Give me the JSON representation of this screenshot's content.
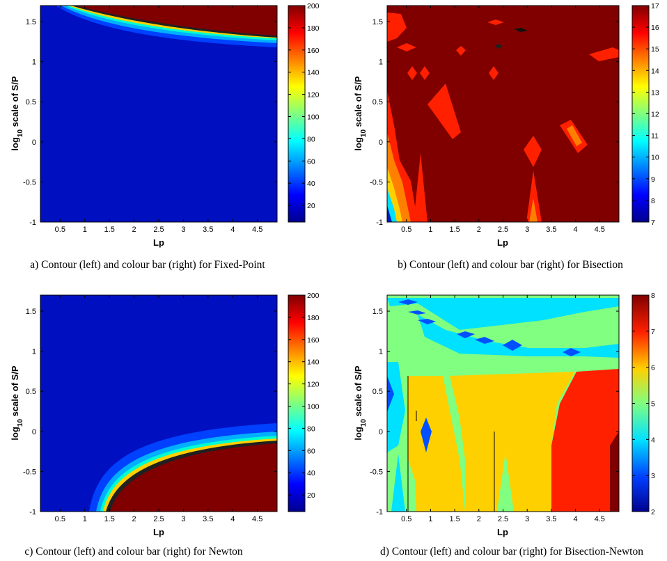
{
  "chart_data": [
    {
      "id": "a",
      "type": "heatmap",
      "caption": "a) Contour (left) and colour bar (right) for Fixed-Point",
      "xlabel": "Lp",
      "ylabel_prefix": "log",
      "ylabel_sub": "10",
      "ylabel_suffix": " scale of S/P",
      "xlim": [
        0.1,
        4.9
      ],
      "ylim": [
        -1,
        1.7
      ],
      "xticks": [
        "0.5",
        "1",
        "1.5",
        "2",
        "2.5",
        "3",
        "3.5",
        "4",
        "4.5"
      ],
      "yticks": [
        "-1",
        "-0.5",
        "0",
        "0.5",
        "1",
        "1.5"
      ],
      "colorbar": {
        "min": 5,
        "max": 200,
        "ticks": [
          "20",
          "40",
          "60",
          "80",
          "100",
          "120",
          "140",
          "160",
          "180",
          "200"
        ]
      }
    },
    {
      "id": "b",
      "type": "heatmap",
      "caption": "b) Contour (left) and colour bar (right) for Bisection",
      "xlabel": "Lp",
      "ylabel_prefix": "log",
      "ylabel_sub": "10",
      "ylabel_suffix": " scale of S/P",
      "xlim": [
        0.1,
        4.9
      ],
      "ylim": [
        -1,
        1.7
      ],
      "xticks": [
        "0.5",
        "1",
        "1.5",
        "2",
        "2.5",
        "3",
        "3.5",
        "4",
        "4.5"
      ],
      "yticks": [
        "-1",
        "-0.5",
        "0",
        "0.5",
        "1",
        "1.5"
      ],
      "colorbar": {
        "min": 7,
        "max": 17,
        "ticks": [
          "7",
          "8",
          "9",
          "10",
          "11",
          "12",
          "13",
          "14",
          "15",
          "16",
          "17"
        ]
      }
    },
    {
      "id": "c",
      "type": "heatmap",
      "caption": "c) Contour (left) and colour bar (right) for Newton",
      "xlabel": "Lp",
      "ylabel_prefix": "log",
      "ylabel_sub": "10",
      "ylabel_suffix": " scale of S/P",
      "xlim": [
        0.1,
        4.9
      ],
      "ylim": [
        -1,
        1.7
      ],
      "xticks": [
        "0.5",
        "1",
        "1.5",
        "2",
        "2.5",
        "3",
        "3.5",
        "4",
        "4.5"
      ],
      "yticks": [
        "-1",
        "-0.5",
        "0",
        "0.5",
        "1",
        "1.5"
      ],
      "colorbar": {
        "min": 5,
        "max": 200,
        "ticks": [
          "20",
          "40",
          "60",
          "80",
          "100",
          "120",
          "140",
          "160",
          "180",
          "200"
        ]
      }
    },
    {
      "id": "d",
      "type": "heatmap",
      "caption": "d) Contour (left) and colour bar (right) for Bisection-Newton",
      "xlabel": "Lp",
      "ylabel_prefix": "log",
      "ylabel_sub": "10",
      "ylabel_suffix": " scale of S/P",
      "xlim": [
        0.1,
        4.9
      ],
      "ylim": [
        -1,
        1.7
      ],
      "xticks": [
        "0.5",
        "1",
        "1.5",
        "2",
        "2.5",
        "3",
        "3.5",
        "4",
        "4.5"
      ],
      "yticks": [
        "-1",
        "-0.5",
        "0",
        "0.5",
        "1",
        "1.5"
      ],
      "colorbar": {
        "min": 2,
        "max": 8,
        "ticks": [
          "2",
          "3",
          "4",
          "5",
          "6",
          "7",
          "8"
        ]
      }
    }
  ],
  "colors": {
    "dark_red": "#800000",
    "red": "#ff2000",
    "orange": "#ff8000",
    "yellow": "#ffd000",
    "light_green": "#80ff80",
    "cyan": "#00e0ff",
    "blue": "#0050ff",
    "navy": "#0010b0",
    "dark_blue": "#00008f"
  }
}
